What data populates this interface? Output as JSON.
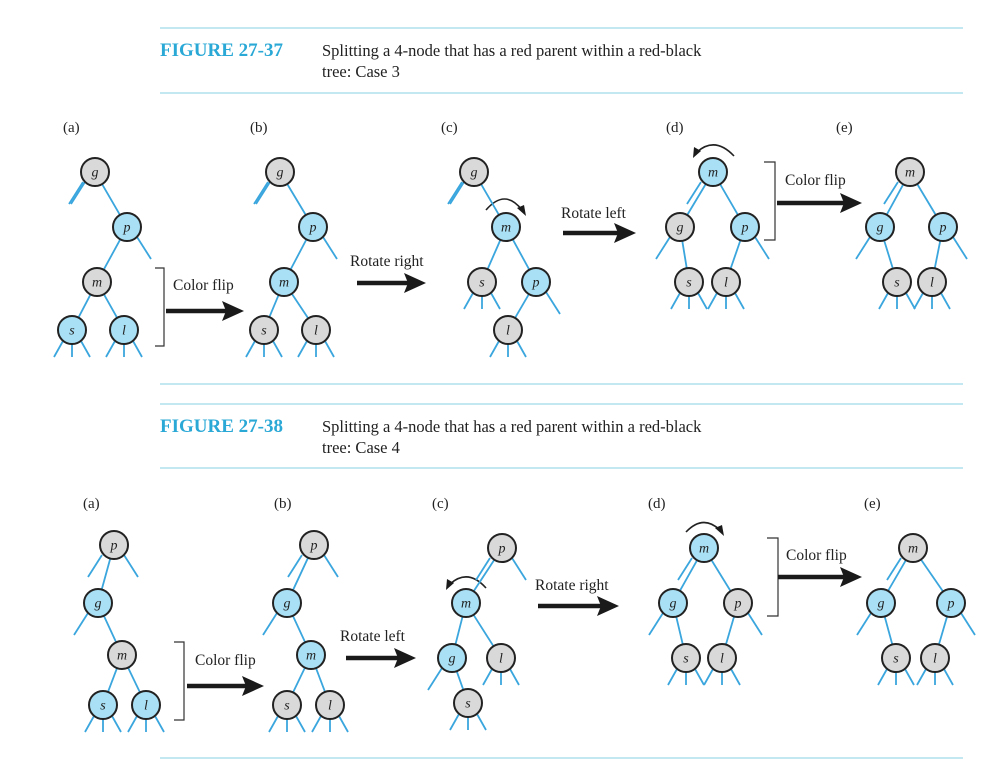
{
  "figures": [
    {
      "label": "FIGURE 27-37",
      "caption_line1": "Splitting a 4-node that has a red parent within a red-black",
      "caption_line2": "tree: Case 3",
      "panel_labels": [
        "(a)",
        "(b)",
        "(c)",
        "(d)",
        "(e)"
      ],
      "operations": [
        "Color flip",
        "Rotate right",
        "Rotate left",
        "Color flip"
      ]
    },
    {
      "label": "FIGURE 27-38",
      "caption_line1": "Splitting a 4-node that has a red parent within a red-black",
      "caption_line2": "tree: Case 4",
      "panel_labels": [
        "(a)",
        "(b)",
        "(c)",
        "(d)",
        "(e)"
      ],
      "operations": [
        "Color flip",
        "Rotate left",
        "Rotate right",
        "Color flip"
      ]
    }
  ],
  "node_colors": {
    "red": "#a9e0f5",
    "black": "#d9d9d9",
    "edge": "#3aa6dd",
    "accent": "#2aa8d6"
  },
  "trees": [
    {
      "nodes": [
        {
          "id": "g",
          "label": "g",
          "color": "black"
        },
        {
          "id": "p",
          "label": "p",
          "color": "red"
        },
        {
          "id": "m",
          "label": "m",
          "color": "black"
        },
        {
          "id": "s",
          "label": "s",
          "color": "red"
        },
        {
          "id": "l",
          "label": "l",
          "color": "red"
        }
      ],
      "edges": [
        [
          "g",
          "p"
        ],
        [
          "p",
          "m"
        ],
        [
          "m",
          "s"
        ],
        [
          "m",
          "l"
        ]
      ]
    },
    {
      "nodes": [
        {
          "id": "g",
          "label": "g",
          "color": "black"
        },
        {
          "id": "p",
          "label": "p",
          "color": "red"
        },
        {
          "id": "m",
          "label": "m",
          "color": "red"
        },
        {
          "id": "s",
          "label": "s",
          "color": "black"
        },
        {
          "id": "l",
          "label": "l",
          "color": "black"
        }
      ],
      "edges": [
        [
          "g",
          "p"
        ],
        [
          "p",
          "m"
        ],
        [
          "m",
          "s"
        ],
        [
          "m",
          "l"
        ]
      ]
    },
    {
      "nodes": [
        {
          "id": "g",
          "label": "g",
          "color": "black"
        },
        {
          "id": "m",
          "label": "m",
          "color": "red"
        },
        {
          "id": "s",
          "label": "s",
          "color": "black"
        },
        {
          "id": "p",
          "label": "p",
          "color": "red"
        },
        {
          "id": "l",
          "label": "l",
          "color": "black"
        }
      ],
      "edges": [
        [
          "g",
          "m"
        ],
        [
          "m",
          "s"
        ],
        [
          "m",
          "p"
        ],
        [
          "p",
          "l"
        ]
      ]
    },
    {
      "nodes": [
        {
          "id": "m",
          "label": "m",
          "color": "red"
        },
        {
          "id": "g",
          "label": "g",
          "color": "black"
        },
        {
          "id": "p",
          "label": "p",
          "color": "red"
        },
        {
          "id": "s",
          "label": "s",
          "color": "black"
        },
        {
          "id": "l",
          "label": "l",
          "color": "black"
        }
      ],
      "edges": [
        [
          "m",
          "g"
        ],
        [
          "m",
          "p"
        ],
        [
          "g",
          "s"
        ],
        [
          "p",
          "l"
        ]
      ]
    },
    {
      "nodes": [
        {
          "id": "m",
          "label": "m",
          "color": "black"
        },
        {
          "id": "g",
          "label": "g",
          "color": "red"
        },
        {
          "id": "p",
          "label": "p",
          "color": "red"
        },
        {
          "id": "s",
          "label": "s",
          "color": "black"
        },
        {
          "id": "l",
          "label": "l",
          "color": "black"
        }
      ],
      "edges": [
        [
          "m",
          "g"
        ],
        [
          "m",
          "p"
        ],
        [
          "g",
          "s"
        ],
        [
          "p",
          "l"
        ]
      ]
    },
    {
      "nodes": [
        {
          "id": "p",
          "label": "p",
          "color": "black"
        },
        {
          "id": "g",
          "label": "g",
          "color": "red"
        },
        {
          "id": "m",
          "label": "m",
          "color": "black"
        },
        {
          "id": "s",
          "label": "s",
          "color": "red"
        },
        {
          "id": "l",
          "label": "l",
          "color": "red"
        }
      ],
      "edges": [
        [
          "p",
          "g"
        ],
        [
          "g",
          "m"
        ],
        [
          "m",
          "s"
        ],
        [
          "m",
          "l"
        ]
      ]
    },
    {
      "nodes": [
        {
          "id": "p",
          "label": "p",
          "color": "black"
        },
        {
          "id": "g",
          "label": "g",
          "color": "red"
        },
        {
          "id": "m",
          "label": "m",
          "color": "red"
        },
        {
          "id": "s",
          "label": "s",
          "color": "black"
        },
        {
          "id": "l",
          "label": "l",
          "color": "black"
        }
      ],
      "edges": [
        [
          "p",
          "g"
        ],
        [
          "g",
          "m"
        ],
        [
          "m",
          "s"
        ],
        [
          "m",
          "l"
        ]
      ]
    },
    {
      "nodes": [
        {
          "id": "p",
          "label": "p",
          "color": "black"
        },
        {
          "id": "m",
          "label": "m",
          "color": "red"
        },
        {
          "id": "g",
          "label": "g",
          "color": "red"
        },
        {
          "id": "l",
          "label": "l",
          "color": "black"
        },
        {
          "id": "s",
          "label": "s",
          "color": "black"
        }
      ],
      "edges": [
        [
          "p",
          "m"
        ],
        [
          "m",
          "g"
        ],
        [
          "m",
          "l"
        ],
        [
          "g",
          "s"
        ]
      ]
    },
    {
      "nodes": [
        {
          "id": "m",
          "label": "m",
          "color": "red"
        },
        {
          "id": "g",
          "label": "g",
          "color": "red"
        },
        {
          "id": "p",
          "label": "p",
          "color": "black"
        },
        {
          "id": "s",
          "label": "s",
          "color": "black"
        },
        {
          "id": "l",
          "label": "l",
          "color": "black"
        }
      ],
      "edges": [
        [
          "m",
          "g"
        ],
        [
          "m",
          "p"
        ],
        [
          "g",
          "s"
        ],
        [
          "p",
          "l"
        ]
      ]
    },
    {
      "nodes": [
        {
          "id": "m",
          "label": "m",
          "color": "black"
        },
        {
          "id": "g",
          "label": "g",
          "color": "red"
        },
        {
          "id": "p",
          "label": "p",
          "color": "red"
        },
        {
          "id": "s",
          "label": "s",
          "color": "black"
        },
        {
          "id": "l",
          "label": "l",
          "color": "black"
        }
      ],
      "edges": [
        [
          "m",
          "g"
        ],
        [
          "m",
          "p"
        ],
        [
          "g",
          "s"
        ],
        [
          "p",
          "l"
        ]
      ]
    }
  ]
}
